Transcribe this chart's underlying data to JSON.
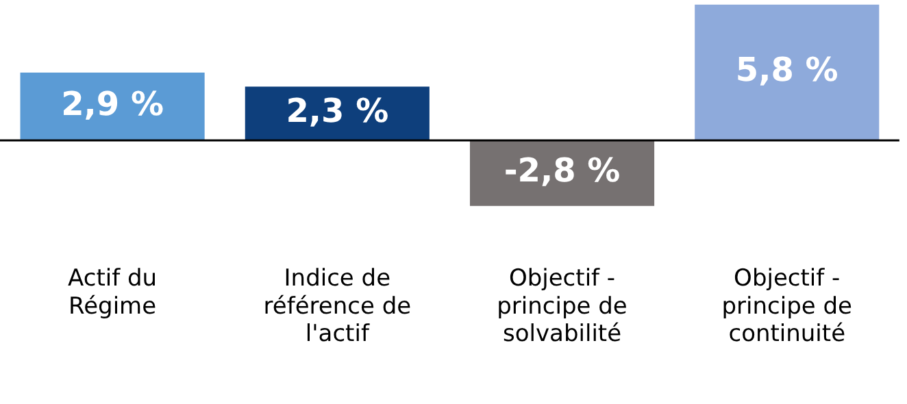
{
  "chart_data": {
    "type": "bar",
    "categories": [
      "Actif du Régime",
      "Indice de référence de l'actif",
      "Objectif - principe de solvabilité",
      "Objectif - principe de continuité"
    ],
    "values": [
      2.9,
      2.3,
      -2.8,
      5.8
    ],
    "colors": [
      "#5b9bd5",
      "#0e3f7c",
      "#767171",
      "#8eaadb"
    ],
    "value_labels": [
      "2,9 %",
      "2,3 %",
      "-2,8 %",
      "5,8 %"
    ],
    "grid": false,
    "legend": false
  }
}
